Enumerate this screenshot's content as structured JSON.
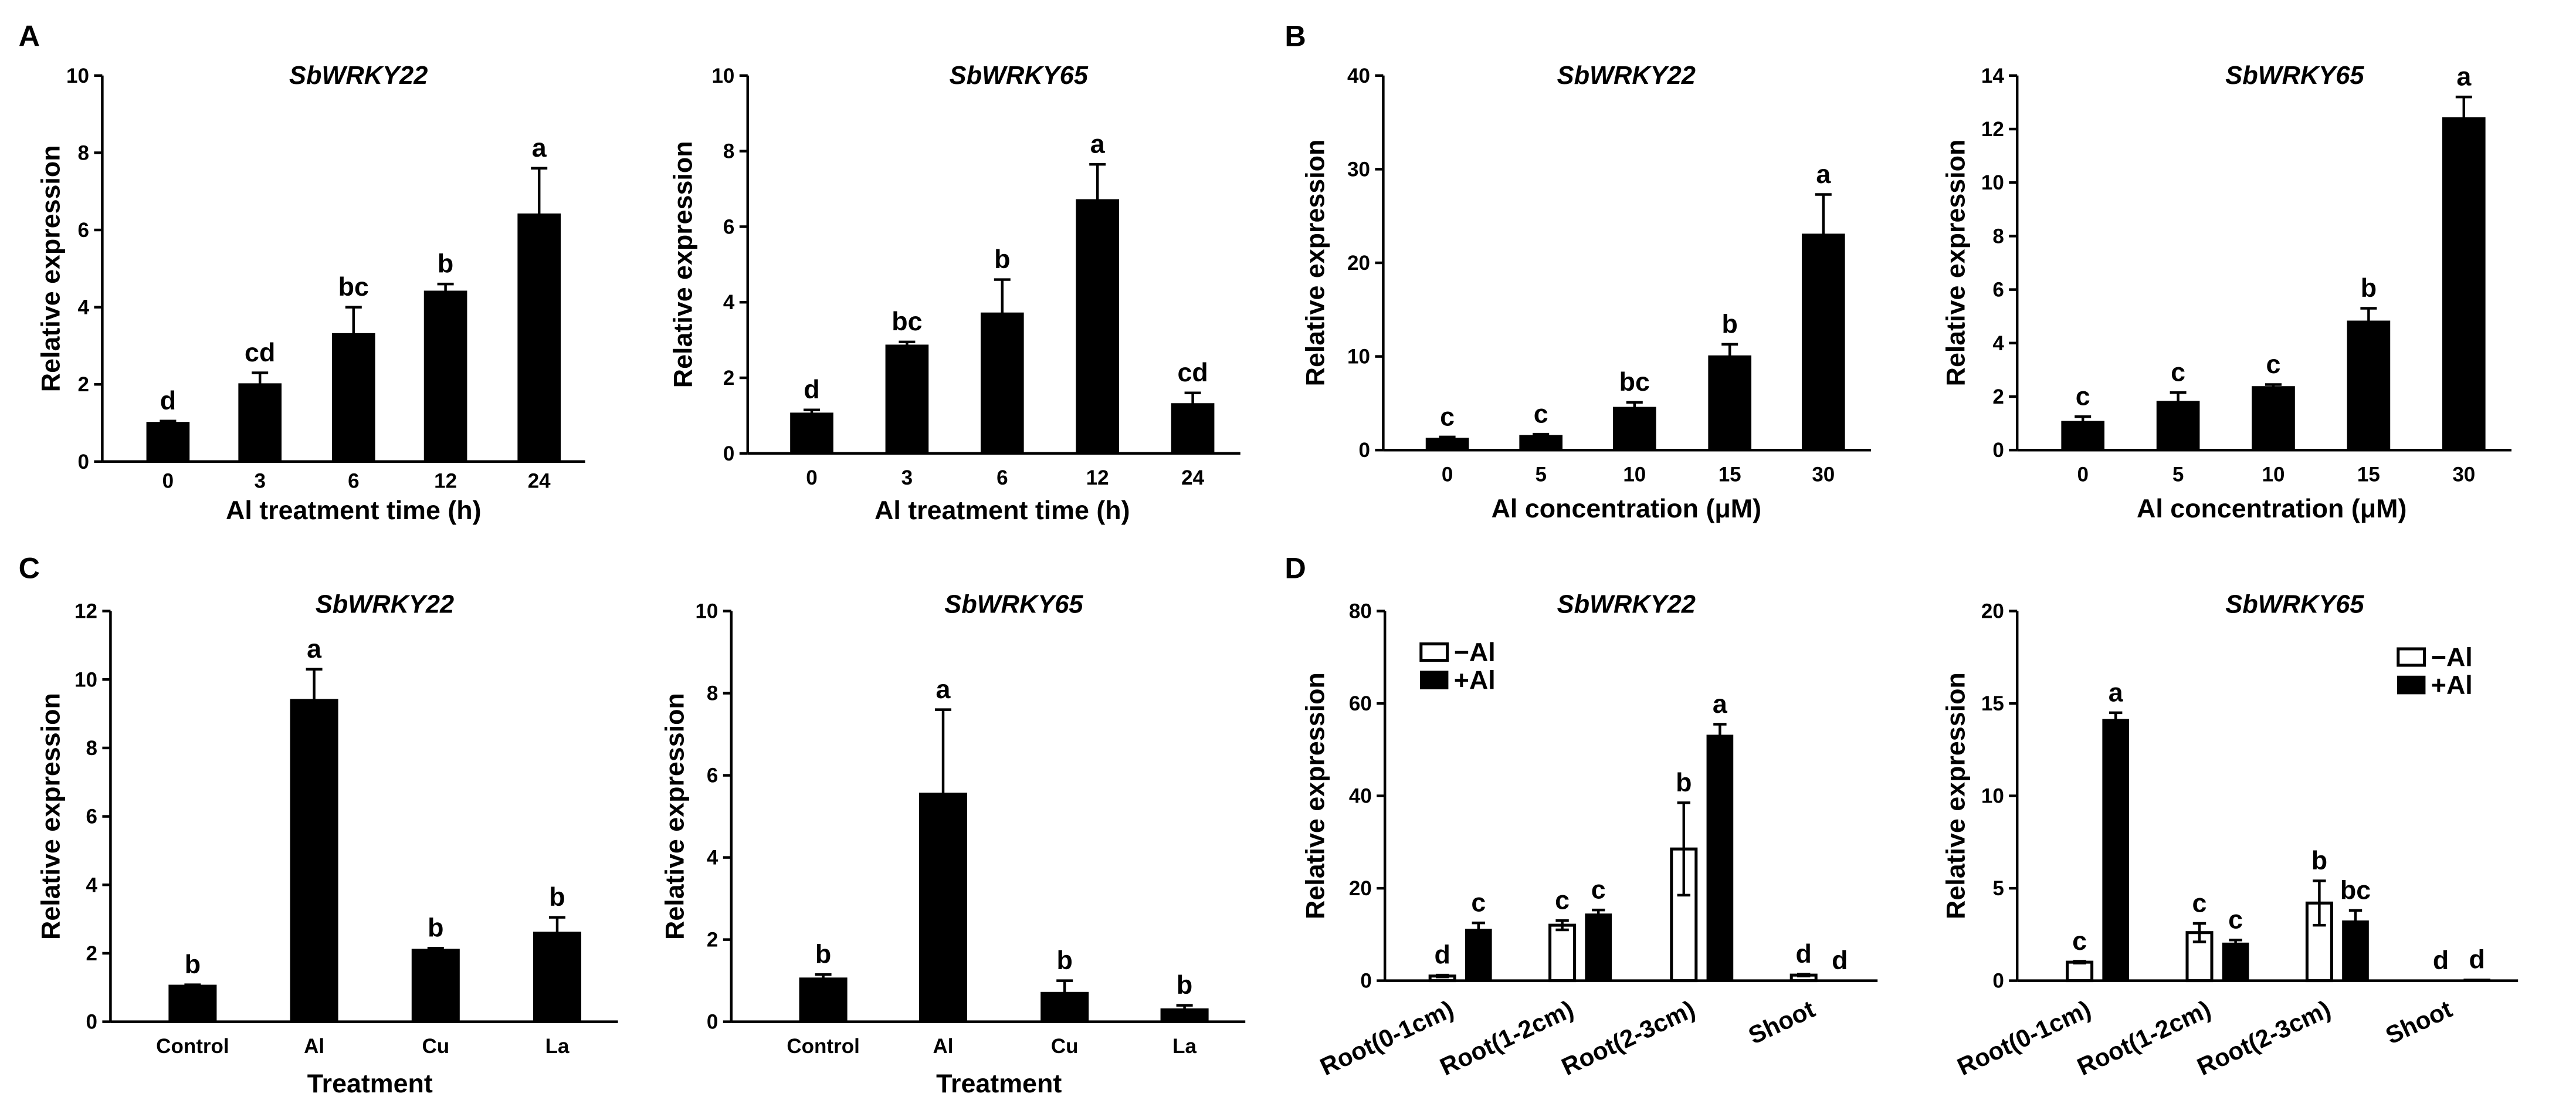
{
  "panel_labels": [
    "A",
    "B",
    "C",
    "D"
  ],
  "style": {
    "bar_fill": "#000000",
    "open_bar_fill": "#ffffff"
  },
  "chart_data": [
    {
      "type": "bar",
      "title": "SbWRKY22",
      "xlabel": "Al treatment time (h)",
      "ylabel": "Relative expression",
      "categories": [
        "0",
        "3",
        "6",
        "12",
        "24"
      ],
      "values": [
        1.0,
        2.0,
        3.3,
        4.4,
        6.4
      ],
      "errors": [
        0.05,
        0.3,
        0.7,
        0.2,
        1.2
      ],
      "letters": [
        "d",
        "cd",
        "bc",
        "b",
        "a"
      ],
      "ylim": [
        0,
        10
      ],
      "yticks": [
        0,
        2,
        4,
        6,
        8,
        10
      ],
      "grid": false
    },
    {
      "type": "bar",
      "title": "SbWRKY65",
      "xlabel": "Al treatment time (h)",
      "ylabel": "Relative expression",
      "categories": [
        "0",
        "3",
        "6",
        "12",
        "24"
      ],
      "values": [
        1.05,
        2.85,
        3.7,
        6.7,
        1.3
      ],
      "errors": [
        0.1,
        0.1,
        0.9,
        0.95,
        0.3
      ],
      "letters": [
        "d",
        "bc",
        "b",
        "a",
        "cd"
      ],
      "ylim": [
        0,
        10
      ],
      "yticks": [
        0,
        2,
        4,
        6,
        8,
        10
      ],
      "grid": false
    },
    {
      "type": "bar",
      "title": "SbWRKY22",
      "xlabel": "Al concentration (μM)",
      "ylabel": "Relative expression",
      "categories": [
        "0",
        "5",
        "10",
        "15",
        "30"
      ],
      "values": [
        1.2,
        1.5,
        4.5,
        10.0,
        23.0
      ],
      "errors": [
        0.2,
        0.2,
        0.6,
        1.3,
        4.3
      ],
      "letters": [
        "c",
        "c",
        "bc",
        "b",
        "a"
      ],
      "ylim": [
        0,
        40
      ],
      "yticks": [
        0,
        10,
        20,
        30,
        40
      ],
      "grid": false
    },
    {
      "type": "bar",
      "title": "SbWRKY65",
      "xlabel": "Al concentration (μM)",
      "ylabel": "Relative expression",
      "categories": [
        "0",
        "5",
        "10",
        "15",
        "30"
      ],
      "values": [
        1.05,
        1.8,
        2.35,
        4.8,
        12.4
      ],
      "errors": [
        0.2,
        0.35,
        0.1,
        0.5,
        0.8
      ],
      "letters": [
        "c",
        "c",
        "c",
        "b",
        "a"
      ],
      "ylim": [
        0,
        14
      ],
      "yticks": [
        0,
        2,
        4,
        6,
        8,
        10,
        12,
        14
      ],
      "grid": false
    },
    {
      "type": "bar",
      "title": "SbWRKY22",
      "xlabel": "Treatment",
      "ylabel": "Relative expression",
      "categories": [
        "Control",
        "Al",
        "Cu",
        "La"
      ],
      "values": [
        1.05,
        9.4,
        2.1,
        2.6
      ],
      "errors": [
        0.03,
        0.9,
        0.05,
        0.45
      ],
      "letters": [
        "b",
        "a",
        "b",
        "b"
      ],
      "ylim": [
        0,
        12
      ],
      "yticks": [
        0,
        2,
        4,
        6,
        8,
        10,
        12
      ],
      "grid": false
    },
    {
      "type": "bar",
      "title": "SbWRKY65",
      "xlabel": "Treatment",
      "ylabel": "Relative expression",
      "categories": [
        "Control",
        "Al",
        "Cu",
        "La"
      ],
      "values": [
        1.05,
        5.55,
        0.7,
        0.3
      ],
      "errors": [
        0.1,
        2.05,
        0.3,
        0.1
      ],
      "letters": [
        "b",
        "a",
        "b",
        "b"
      ],
      "ylim": [
        0,
        10
      ],
      "yticks": [
        0,
        2,
        4,
        6,
        8,
        10
      ],
      "grid": false
    },
    {
      "type": "bar",
      "title": "SbWRKY22",
      "xlabel": "",
      "ylabel": "Relative expression",
      "categories": [
        "Root(0-1cm)",
        "Root(1-2cm)",
        "Root(2-3cm)",
        "Shoot"
      ],
      "series": [
        {
          "name": "−Al",
          "values": [
            1.0,
            12.0,
            28.5,
            1.2
          ],
          "errors": [
            0.2,
            1.0,
            10.0,
            0.2
          ],
          "letters": [
            "d",
            "c",
            "b",
            "d"
          ]
        },
        {
          "name": "+Al",
          "values": [
            11.0,
            14.3,
            53.0,
            0.0
          ],
          "errors": [
            1.5,
            1.0,
            2.5,
            0.0
          ],
          "letters": [
            "c",
            "c",
            "a",
            "d"
          ]
        }
      ],
      "ylim": [
        0,
        80
      ],
      "yticks": [
        0,
        20,
        40,
        60,
        80
      ],
      "legend": "top-left",
      "grid": false
    },
    {
      "type": "bar",
      "title": "SbWRKY65",
      "xlabel": "",
      "ylabel": "Relative expression",
      "categories": [
        "Root(0-1cm)",
        "Root(1-2cm)",
        "Root(2-3cm)",
        "Shoot"
      ],
      "series": [
        {
          "name": "−Al",
          "values": [
            1.0,
            2.6,
            4.2,
            0.0
          ],
          "errors": [
            0.05,
            0.5,
            1.2,
            0.0
          ],
          "letters": [
            "c",
            "c",
            "b",
            "d"
          ]
        },
        {
          "name": "+Al",
          "values": [
            14.1,
            2.0,
            3.2,
            0.05
          ],
          "errors": [
            0.4,
            0.2,
            0.6,
            0.0
          ],
          "letters": [
            "a",
            "c",
            "bc",
            "d"
          ]
        }
      ],
      "ylim": [
        0,
        20
      ],
      "yticks": [
        0,
        5,
        10,
        15,
        20
      ],
      "legend": "top-right",
      "grid": false
    }
  ]
}
